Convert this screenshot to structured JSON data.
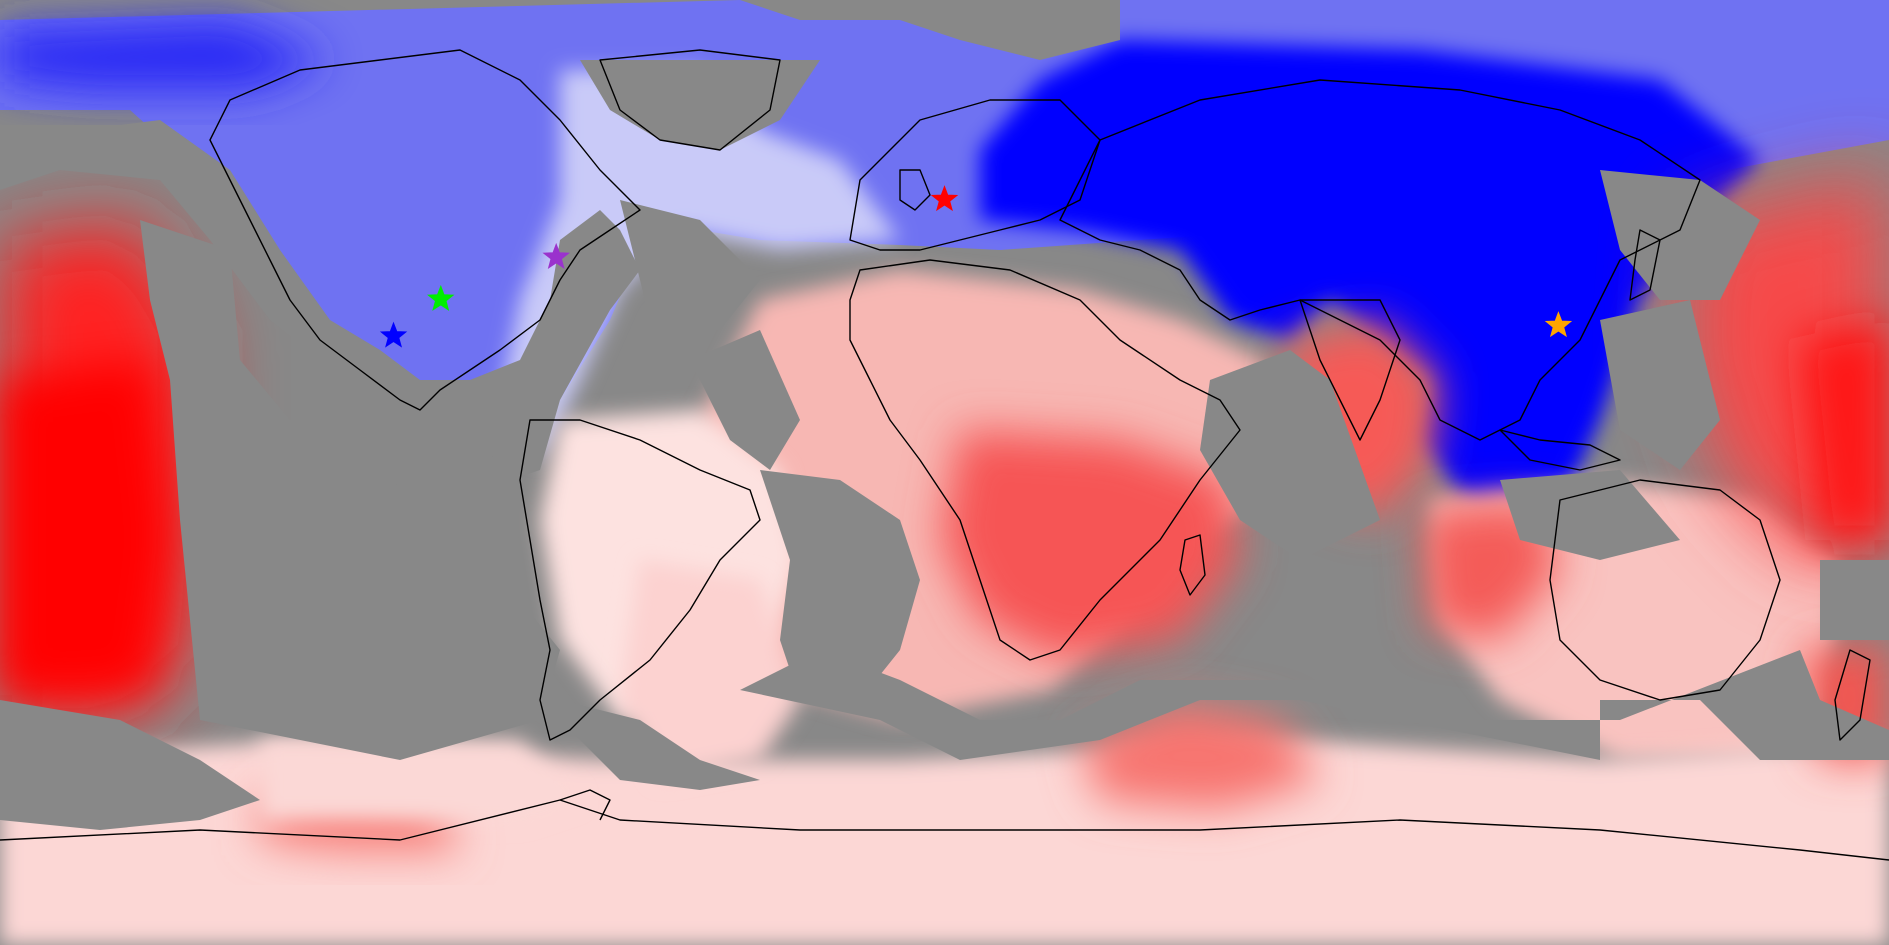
{
  "map": {
    "projection": "equirectangular",
    "extent": {
      "lon": [
        -180,
        180
      ],
      "lat": [
        -90,
        90
      ]
    },
    "no_data_color": "#888888",
    "diverging_colors": {
      "strong_negative": "#0000ff",
      "neutral": "#ffffff",
      "strong_positive": "#ff0000"
    },
    "markers": [
      {
        "id": "red-star",
        "color": "#ff0000",
        "lon": 0,
        "lat": 52
      },
      {
        "id": "purple-star",
        "color": "#9a32cd",
        "lon": -74,
        "lat": 41
      },
      {
        "id": "green-star",
        "color": "#00ee00",
        "lon": -96,
        "lat": 33
      },
      {
        "id": "blue-star",
        "color": "#0000ff",
        "lon": -105,
        "lat": 26
      },
      {
        "id": "orange-star",
        "color": "#ffa500",
        "lon": 117,
        "lat": 28
      }
    ]
  }
}
